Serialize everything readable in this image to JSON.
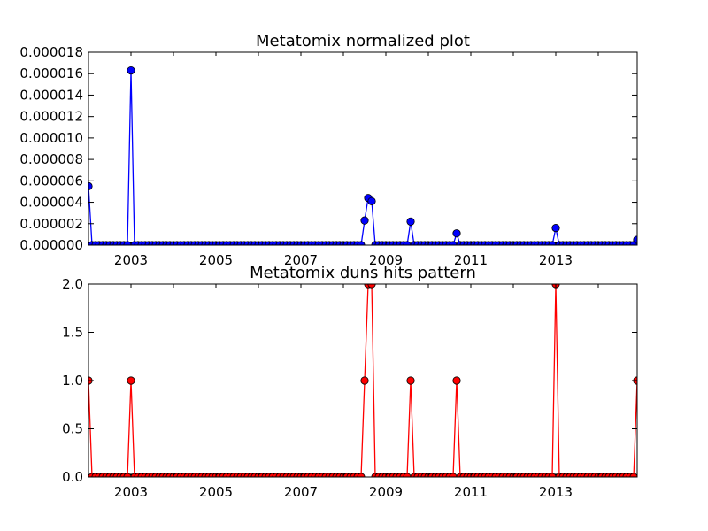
{
  "chart_data": [
    {
      "type": "line",
      "title": "Metatomix normalized plot",
      "xlabel": "",
      "ylabel": "",
      "x_range": [
        "2002-01",
        "2014-12"
      ],
      "ylim": [
        0,
        1.8e-05
      ],
      "grid": false,
      "color": "#0000ff",
      "x_tick_labels": [
        "2003",
        "2005",
        "2007",
        "2009",
        "2011",
        "2013"
      ],
      "y_tick_labels": [
        "0.000000",
        "0.000002",
        "0.000004",
        "0.000006",
        "0.000008",
        "0.000010",
        "0.000012",
        "0.000014",
        "0.000016",
        "0.000018"
      ],
      "baseline": 0,
      "series": [
        {
          "points": [
            {
              "x": "2002-01",
              "y": 5.5e-06
            },
            {
              "x": "2003-01",
              "y": 1.63e-05
            },
            {
              "x": "2008-07",
              "y": 2.3e-06
            },
            {
              "x": "2008-08",
              "y": 4.4e-06
            },
            {
              "x": "2008-09",
              "y": 4.1e-06
            },
            {
              "x": "2009-08",
              "y": 2.2e-06
            },
            {
              "x": "2010-09",
              "y": 1.1e-06
            },
            {
              "x": "2013-01",
              "y": 1.6e-06
            },
            {
              "x": "2014-12",
              "y": 5e-07
            }
          ]
        }
      ]
    },
    {
      "type": "line",
      "title": "Metatomix duns hits pattern",
      "xlabel": "",
      "ylabel": "",
      "x_range": [
        "2002-01",
        "2014-12"
      ],
      "ylim": [
        0,
        2.0
      ],
      "grid": false,
      "color": "#ff0000",
      "x_tick_labels": [
        "2003",
        "2005",
        "2007",
        "2009",
        "2011",
        "2013"
      ],
      "y_tick_labels": [
        "0.0",
        "0.5",
        "1.0",
        "1.5",
        "2.0"
      ],
      "baseline": 0,
      "series": [
        {
          "points": [
            {
              "x": "2002-01",
              "y": 1
            },
            {
              "x": "2003-01",
              "y": 1
            },
            {
              "x": "2008-07",
              "y": 1
            },
            {
              "x": "2008-08",
              "y": 2
            },
            {
              "x": "2008-09",
              "y": 2
            },
            {
              "x": "2009-08",
              "y": 1
            },
            {
              "x": "2010-09",
              "y": 1
            },
            {
              "x": "2013-01",
              "y": 2
            },
            {
              "x": "2014-12",
              "y": 1
            }
          ]
        }
      ]
    }
  ]
}
